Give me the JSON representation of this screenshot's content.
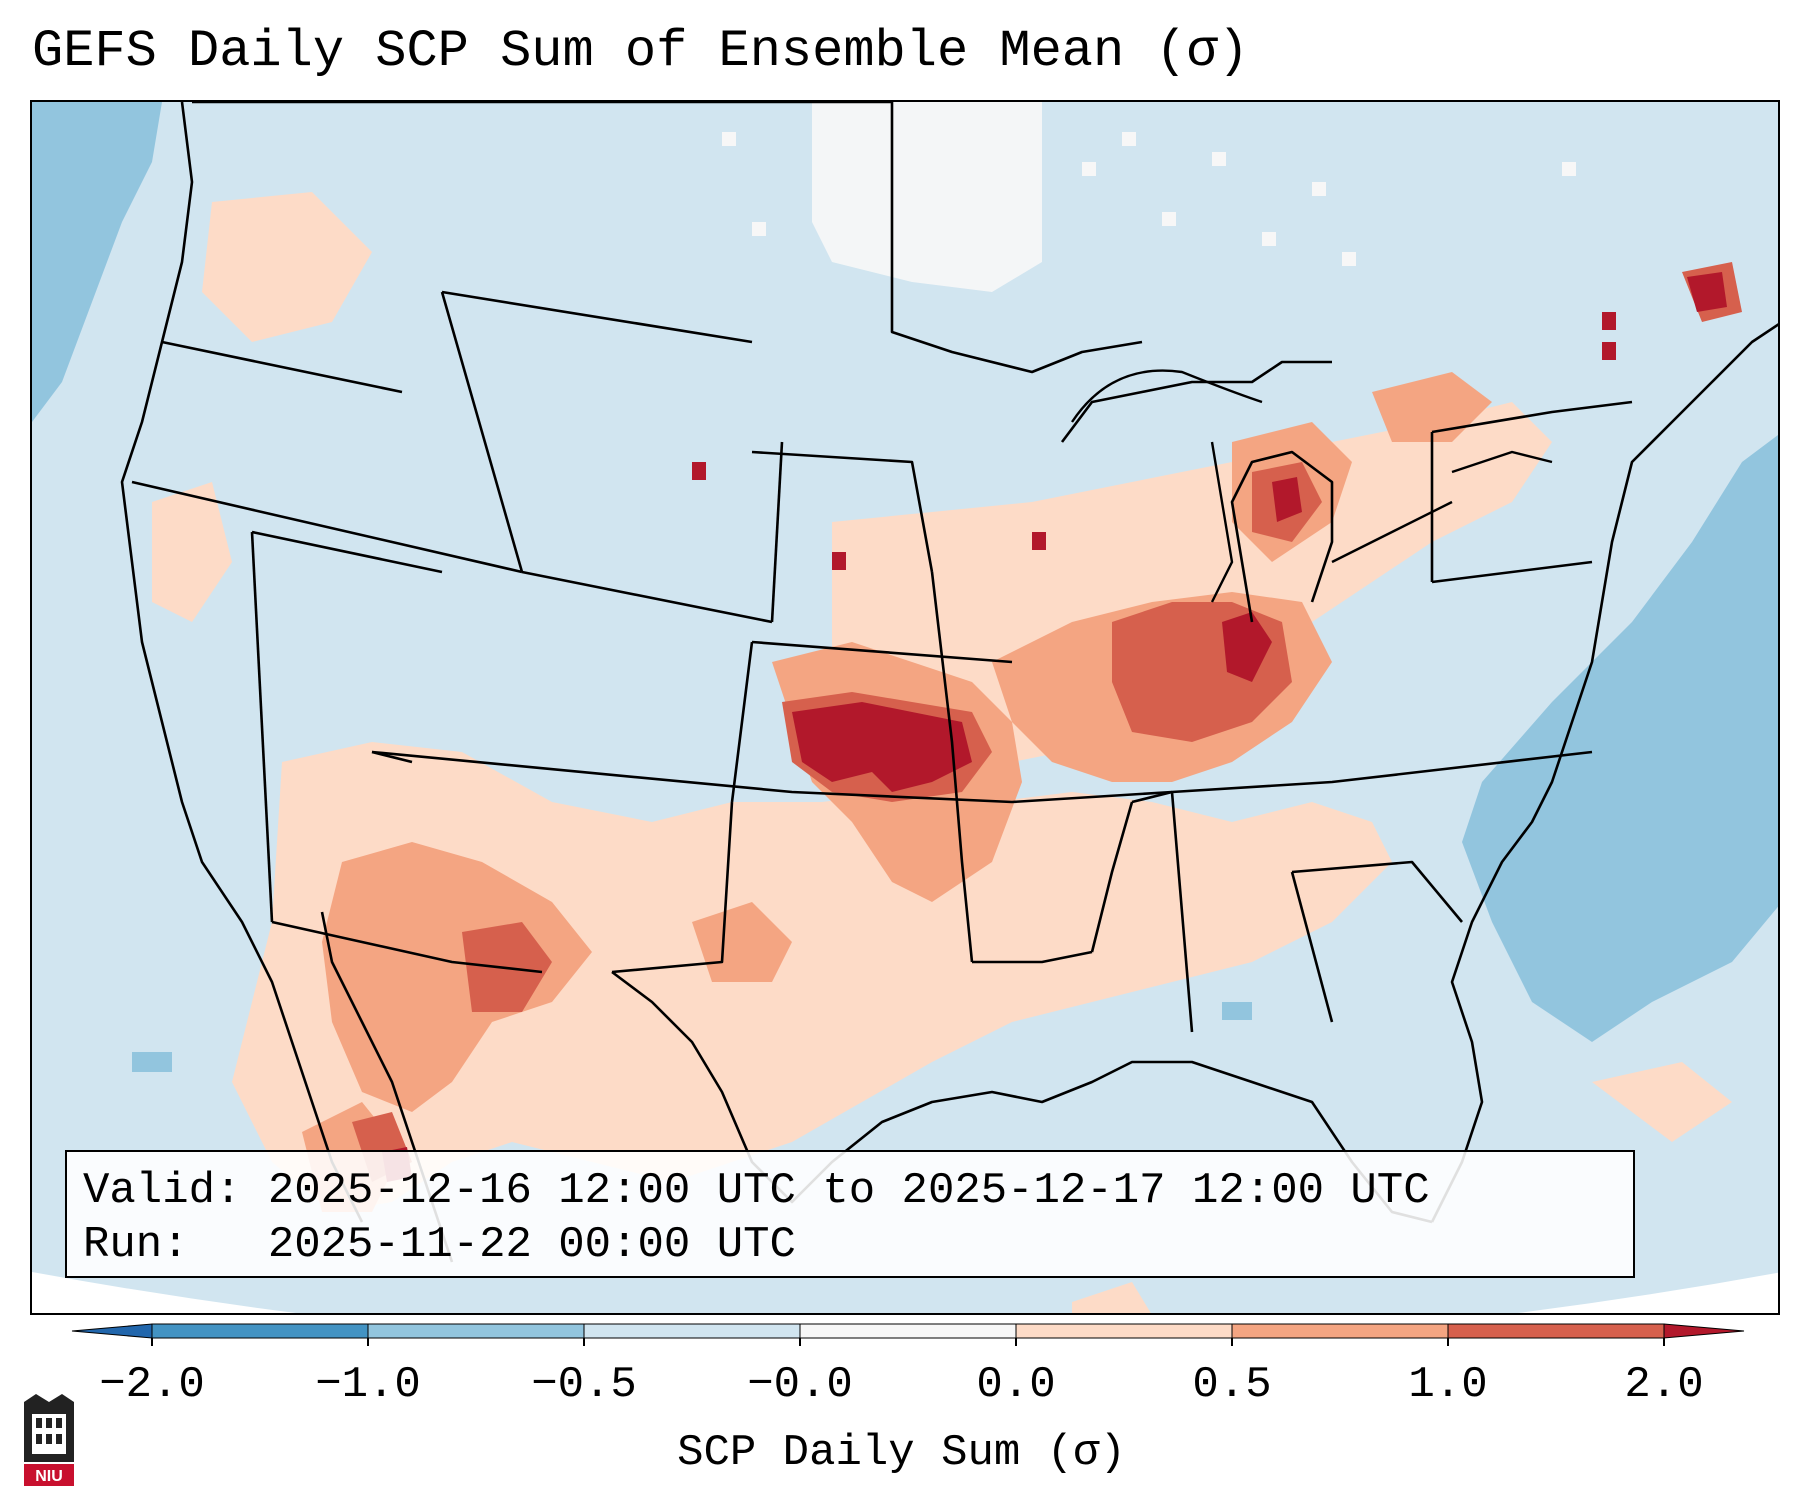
{
  "title": "GEFS Daily SCP Sum of Ensemble Mean (σ)",
  "info": {
    "valid_line": "Valid: 2025-12-16 12:00 UTC to 2025-12-17 12:00 UTC",
    "run_line": "Run:   2025-11-22 00:00 UTC"
  },
  "colorbar": {
    "label": "SCP Daily Sum (σ)",
    "ticks": [
      "−2.0",
      "−1.0",
      "−0.5",
      "−0.0",
      "0.0",
      "0.5",
      "1.0",
      "2.0"
    ],
    "bins": [
      {
        "range": "< -2.0",
        "color": "#2166ac"
      },
      {
        "range": "-2.0 to -1.0",
        "color": "#4393c3"
      },
      {
        "range": "-1.0 to -0.5",
        "color": "#92c5de"
      },
      {
        "range": "-0.5 to -0.0",
        "color": "#d1e5f0"
      },
      {
        "range": "-0.0 to 0.0",
        "color": "#f7f7f7"
      },
      {
        "range": "0.0 to 0.5",
        "color": "#fddbc7"
      },
      {
        "range": "0.5 to 1.0",
        "color": "#f4a582"
      },
      {
        "range": "1.0 to 2.0",
        "color": "#d6604d"
      },
      {
        "range": "> 2.0",
        "color": "#b2182b"
      }
    ]
  },
  "map": {
    "region": "CONUS",
    "background_level": "-0.5 to -0.0",
    "highlighted_regions": [
      {
        "area": "Kansas / SE Nebraska",
        "level": "> 2.0"
      },
      {
        "area": "Indiana / Ohio Valley",
        "level": "1.0 to 2.0"
      },
      {
        "area": "Michigan",
        "level": "1.0 to 2.0"
      },
      {
        "area": "Southwest US / NW Mexico",
        "level": "0.5 to 1.0"
      },
      {
        "area": "Southern Plains / Texas",
        "level": "0.0 to 0.5"
      },
      {
        "area": "Western Atlantic",
        "level": "-1.0 to -0.5"
      }
    ]
  },
  "logo_text": "NIU"
}
